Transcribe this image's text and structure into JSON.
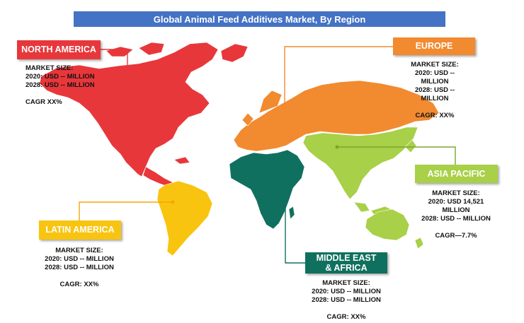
{
  "title": "Global Animal Feed Additives Market, By Region",
  "colors": {
    "title_bg": "#4472c4",
    "north_america": "#e8373b",
    "europe": "#f28a30",
    "asia_pacific": "#a8d048",
    "latin_america": "#f9c40f",
    "middle_east_africa": "#10705f"
  },
  "regions": {
    "north_america": {
      "label": "NORTH AMERICA",
      "market_size": "MARKET SIZE:",
      "y2020": "2020: USD --  MILLION",
      "y2028": "2028: USD -- MILLION",
      "cagr": "CAGR XX%"
    },
    "europe": {
      "label": "EUROPE",
      "market_size": "MARKET SIZE:",
      "y2020": "2020: USD -- MILLION",
      "y2028": "2028: USD -- MILLION",
      "cagr": "CAGR: XX%"
    },
    "asia_pacific": {
      "label": "ASIA PACIFIC",
      "market_size": "MARKET SIZE:",
      "y2020a": "2020: USD 14,521",
      "y2020b": "MILLION",
      "y2028": "2028: USD -- MILLION",
      "cagr": "CAGR—7.7%"
    },
    "latin_america": {
      "label": "LATIN AMERICA",
      "market_size": "MARKET SIZE:",
      "y2020": "2020: USD -- MILLION",
      "y2028": "2028: USD -- MILLION",
      "cagr": "CAGR: XX%"
    },
    "middle_east_africa": {
      "label_line1": "MIDDLE EAST",
      "label_line2": "& AFRICA",
      "market_size": "MARKET SIZE:",
      "y2020": "2020: USD -- MILLION",
      "y2028": "2028: USD -- MILLION",
      "cagr": "CAGR: XX%"
    }
  }
}
